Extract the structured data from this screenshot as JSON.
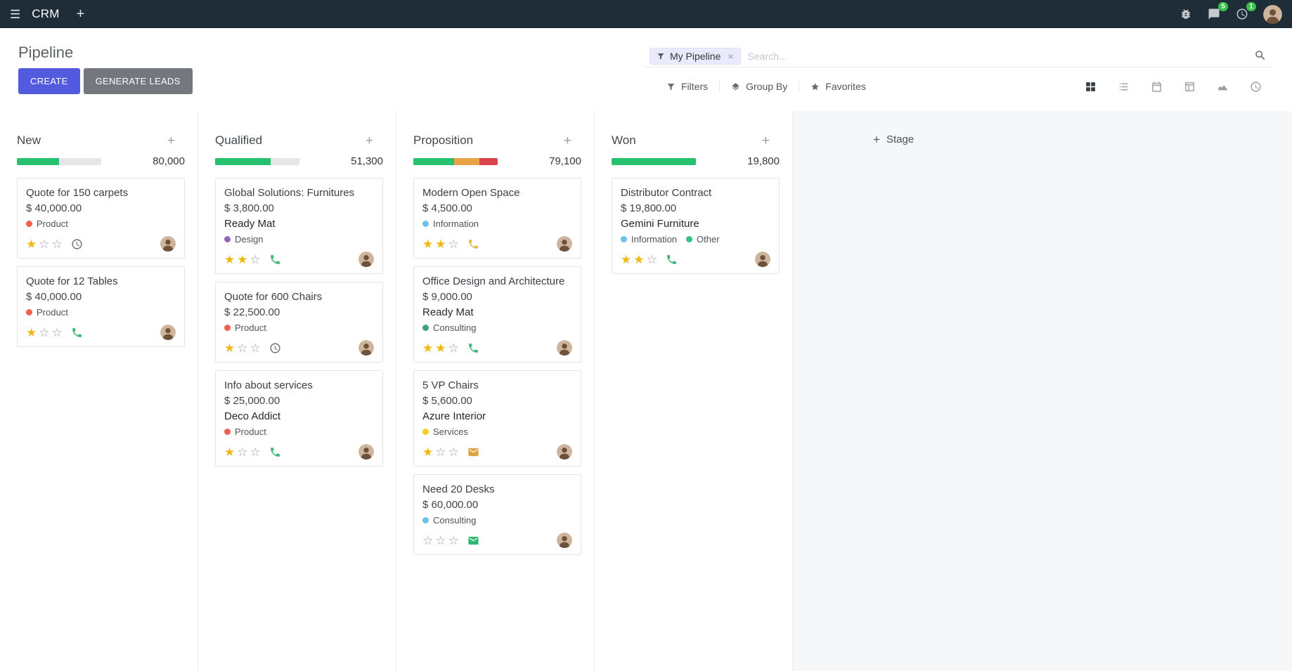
{
  "icons": {
    "hamburger": "☰",
    "plus": "+",
    "close": "×",
    "star_filled": "★",
    "star_empty": "☆"
  },
  "colors": {
    "navbar_bg": "#1e2d37",
    "primary_button": "#525be0",
    "secondary_button": "#74777e",
    "badge_green": "#37c248",
    "progress_green": "#25c16f",
    "progress_yellow": "#e8a444",
    "progress_red": "#d9434e",
    "star_gold": "#efb810"
  },
  "navbar": {
    "app_name": "CRM",
    "messages_badge": "5",
    "activities_badge": "1"
  },
  "control_panel": {
    "title": "Pipeline",
    "create_button": "CREATE",
    "generate_leads_button": "GENERATE LEADS",
    "search": {
      "facet_label": "My Pipeline",
      "placeholder": "Search..."
    },
    "menus": [
      {
        "label": "Filters"
      },
      {
        "label": "Group By"
      },
      {
        "label": "Favorites"
      }
    ]
  },
  "board": {
    "add_stage_label": "Stage",
    "columns": [
      {
        "name": "New",
        "total": "80,000",
        "progress": [
          {
            "color": "#25c16f",
            "pct": 50
          }
        ],
        "cards": [
          {
            "title": "Quote for 150 carpets",
            "amount": "$ 40,000.00",
            "tags": [
              {
                "label": "Product",
                "color": "#f06050"
              }
            ],
            "stars": 1,
            "activity": {
              "icon": "clock-icon",
              "color": "#6b7176"
            }
          },
          {
            "title": "Quote for 12 Tables",
            "amount": "$ 40,000.00",
            "tags": [
              {
                "label": "Product",
                "color": "#f06050"
              }
            ],
            "stars": 1,
            "activity": {
              "icon": "phone-icon",
              "color": "#3cb878"
            }
          }
        ]
      },
      {
        "name": "Qualified",
        "total": "51,300",
        "progress": [
          {
            "color": "#25c16f",
            "pct": 66
          }
        ],
        "cards": [
          {
            "title": "Global Solutions: Furnitures",
            "amount": "$ 3,800.00",
            "partner": "Ready Mat",
            "tags": [
              {
                "label": "Design",
                "color": "#9365b8"
              }
            ],
            "stars": 2,
            "activity": {
              "icon": "phone-icon",
              "color": "#3cb878"
            }
          },
          {
            "title": "Quote for 600 Chairs",
            "amount": "$ 22,500.00",
            "tags": [
              {
                "label": "Product",
                "color": "#f06050"
              }
            ],
            "stars": 1,
            "activity": {
              "icon": "clock-icon",
              "color": "#6b7176"
            }
          },
          {
            "title": "Info about services",
            "amount": "$ 25,000.00",
            "partner": "Deco Addict",
            "tags": [
              {
                "label": "Product",
                "color": "#f06050"
              }
            ],
            "stars": 1,
            "activity": {
              "icon": "phone-icon",
              "color": "#3cb878"
            }
          }
        ]
      },
      {
        "name": "Proposition",
        "total": "79,100",
        "progress": [
          {
            "color": "#25c16f",
            "pct": 48
          },
          {
            "color": "#e8a444",
            "pct": 30
          },
          {
            "color": "#d9434e",
            "pct": 22
          }
        ],
        "cards": [
          {
            "title": "Modern Open Space",
            "amount": "$ 4,500.00",
            "tags": [
              {
                "label": "Information",
                "color": "#6cc1ed"
              }
            ],
            "stars": 2,
            "activity": {
              "icon": "phone-icon",
              "color": "#e3b944"
            }
          },
          {
            "title": "Office Design and Architecture",
            "amount": "$ 9,000.00",
            "partner": "Ready Mat",
            "tags": [
              {
                "label": "Consulting",
                "color": "#40a184"
              }
            ],
            "stars": 2,
            "activity": {
              "icon": "phone-icon",
              "color": "#3cb878"
            }
          },
          {
            "title": "5 VP Chairs",
            "amount": "$ 5,600.00",
            "partner": "Azure Interior",
            "tags": [
              {
                "label": "Services",
                "color": "#f7cd1f"
              }
            ],
            "stars": 1,
            "activity": {
              "icon": "envelope-icon",
              "color": "#e0a23f"
            }
          },
          {
            "title": "Need 20 Desks",
            "amount": "$ 60,000.00",
            "tags": [
              {
                "label": "Consulting",
                "color": "#6cc1ed"
              }
            ],
            "stars": 0,
            "activity": {
              "icon": "envelope-icon",
              "color": "#2eb873"
            }
          }
        ]
      },
      {
        "name": "Won",
        "total": "19,800",
        "progress": [
          {
            "color": "#25c16f",
            "pct": 100
          }
        ],
        "cards": [
          {
            "title": "Distributor Contract",
            "amount": "$ 19,800.00",
            "partner": "Gemini Furniture",
            "tags": [
              {
                "label": "Information",
                "color": "#6cc1ed"
              },
              {
                "label": "Other",
                "color": "#30c381"
              }
            ],
            "stars": 2,
            "activity": {
              "icon": "phone-icon",
              "color": "#3cb878"
            }
          }
        ]
      }
    ]
  }
}
